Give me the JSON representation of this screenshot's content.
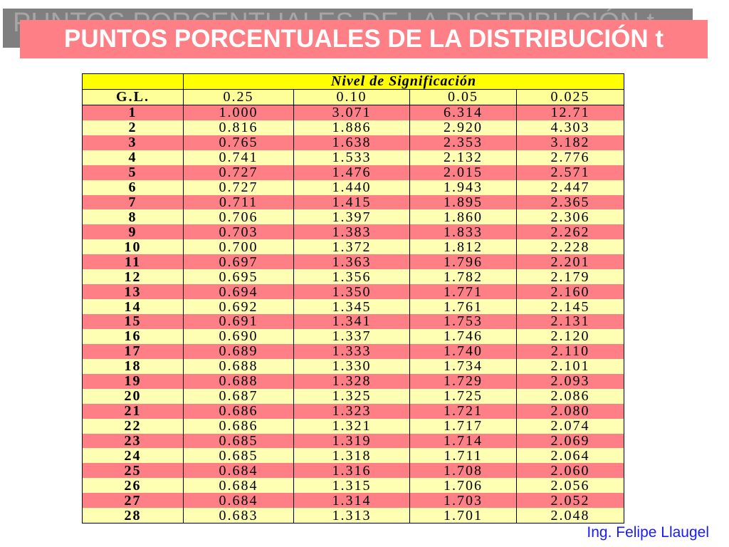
{
  "title": "PUNTOS PORCENTUALES DE LA DISTRIBUCIÓN t",
  "table": {
    "group_header": "Nivel de Significación",
    "gl_header": "G.L.",
    "columns": [
      "0.25",
      "0.10",
      "0.05",
      "0.025"
    ],
    "rows": [
      [
        "1",
        "1.000",
        "3.071",
        "6.314",
        "12.71"
      ],
      [
        "2",
        "0.816",
        "1.886",
        "2.920",
        "4.303"
      ],
      [
        "3",
        "0.765",
        "1.638",
        "2.353",
        "3.182"
      ],
      [
        "4",
        "0.741",
        "1.533",
        "2.132",
        "2.776"
      ],
      [
        "5",
        "0.727",
        "1.476",
        "2.015",
        "2.571"
      ],
      [
        "6",
        "0.727",
        "1.440",
        "1.943",
        "2.447"
      ],
      [
        "7",
        "0.711",
        "1.415",
        "1.895",
        "2.365"
      ],
      [
        "8",
        "0.706",
        "1.397",
        "1.860",
        "2.306"
      ],
      [
        "9",
        "0.703",
        "1.383",
        "1.833",
        "2.262"
      ],
      [
        "10",
        "0.700",
        "1.372",
        "1.812",
        "2.228"
      ],
      [
        "11",
        "0.697",
        "1.363",
        "1.796",
        "2.201"
      ],
      [
        "12",
        "0.695",
        "1.356",
        "1.782",
        "2.179"
      ],
      [
        "13",
        "0.694",
        "1.350",
        "1.771",
        "2.160"
      ],
      [
        "14",
        "0.692",
        "1.345",
        "1.761",
        "2.145"
      ],
      [
        "15",
        "0.691",
        "1.341",
        "1.753",
        "2.131"
      ],
      [
        "16",
        "0.690",
        "1.337",
        "1.746",
        "2.120"
      ],
      [
        "17",
        "0.689",
        "1.333",
        "1.740",
        "2.110"
      ],
      [
        "18",
        "0.688",
        "1.330",
        "1.734",
        "2.101"
      ],
      [
        "19",
        "0.688",
        "1.328",
        "1.729",
        "2.093"
      ],
      [
        "20",
        "0.687",
        "1.325",
        "1.725",
        "2.086"
      ],
      [
        "21",
        "0.686",
        "1.323",
        "1.721",
        "2.080"
      ],
      [
        "22",
        "0.686",
        "1.321",
        "1.717",
        "2.074"
      ],
      [
        "23",
        "0.685",
        "1.319",
        "1.714",
        "2.069"
      ],
      [
        "24",
        "0.685",
        "1.318",
        "1.711",
        "2.064"
      ],
      [
        "25",
        "0.684",
        "1.316",
        "1.708",
        "2.060"
      ],
      [
        "26",
        "0.684",
        "1.315",
        "1.706",
        "2.056"
      ],
      [
        "27",
        "0.684",
        "1.314",
        "1.703",
        "2.052"
      ],
      [
        "28",
        "0.683",
        "1.313",
        "1.701",
        "2.048"
      ]
    ]
  },
  "author": "Ing. Felipe Llaugel",
  "colors": {
    "title_bar": "#ff7f86",
    "title_shadow": "#7f7f7f",
    "header_yellow": "#ffff00",
    "row_pink": "#ff7f86",
    "row_cream": "#ffffb3",
    "author_blue": "#1a1aff"
  }
}
